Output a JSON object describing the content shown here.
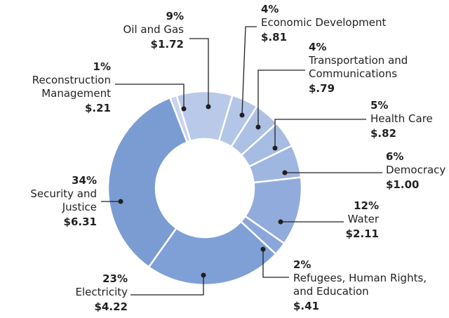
{
  "chart_data": {
    "type": "donut",
    "categories": [
      [
        "Oil and Gas"
      ],
      [
        "Economic Development"
      ],
      [
        "Transportation and",
        "Communications"
      ],
      [
        "Health Care"
      ],
      [
        "Democracy"
      ],
      [
        "Water"
      ],
      [
        "Refugees, Human Rights,",
        "and Education"
      ],
      [
        "Electricity"
      ],
      [
        "Security and",
        "Justice"
      ],
      [
        "Reconstruction",
        "Management"
      ]
    ],
    "values": [
      1.72,
      0.81,
      0.79,
      0.82,
      1.0,
      2.11,
      0.41,
      4.22,
      6.31,
      0.21
    ],
    "value_labels": [
      "$1.72",
      "$.81",
      "$.79",
      "$.82",
      "$1.00",
      "$2.11",
      "$.41",
      "$4.22",
      "$6.31",
      "$.21"
    ],
    "percent_labels": [
      "9%",
      "4%",
      "4%",
      "5%",
      "6%",
      "12%",
      "2%",
      "23%",
      "34%",
      "1%"
    ],
    "colors": [
      "#b9c9e9",
      "#b3c6e7",
      "#adc1e5",
      "#a6bce3",
      "#9fb6e0",
      "#91abdc",
      "#8aa6da",
      "#7fa0d6",
      "#7a9cd3",
      "#c7d4ed"
    ]
  }
}
